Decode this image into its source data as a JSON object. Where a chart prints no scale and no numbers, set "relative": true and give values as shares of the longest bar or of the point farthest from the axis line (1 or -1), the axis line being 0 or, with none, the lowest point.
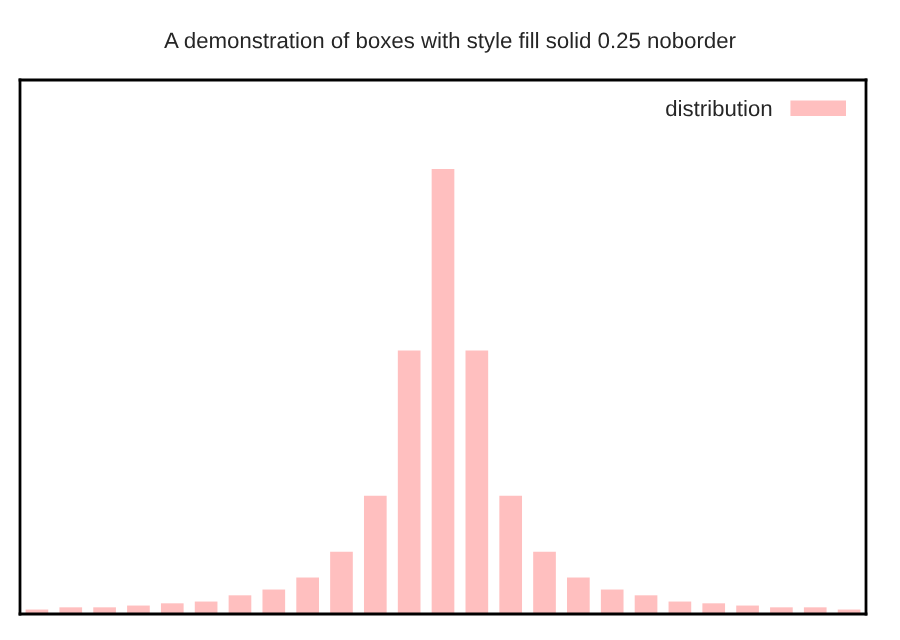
{
  "chart_data": {
    "type": "bar",
    "title": "A demonstration of boxes with style fill solid 0.25 noborder",
    "relative": true,
    "legend": "top right",
    "categories": [
      null,
      null,
      null,
      null,
      null,
      null,
      null,
      null,
      null,
      null,
      null,
      null,
      null,
      null,
      null,
      null,
      null,
      null,
      null,
      null,
      null,
      null,
      null,
      null,
      null
    ],
    "series": [
      {
        "name": "distribution",
        "color": "#ffbfbf",
        "values": [
          0.01,
          0.015,
          0.015,
          0.019,
          0.024,
          0.028,
          0.042,
          0.055,
          0.082,
          0.14,
          0.266,
          0.592,
          1,
          0.592,
          0.266,
          0.14,
          0.082,
          0.055,
          0.042,
          0.028,
          0.024,
          0.019,
          0.015,
          0.015,
          0.01
        ]
      }
    ]
  }
}
